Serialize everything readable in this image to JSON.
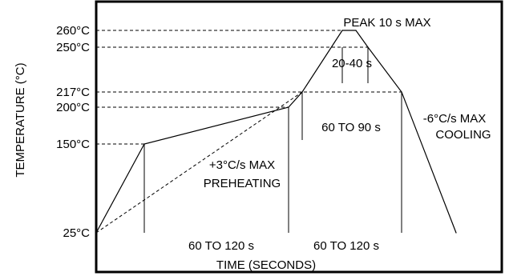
{
  "chart_data": {
    "type": "line",
    "title": "",
    "xlabel": "TIME (SECONDS)",
    "ylabel": "TEMPERATURE (°C)",
    "y_ticks": [
      {
        "value": 25,
        "label": "25°C"
      },
      {
        "value": 150,
        "label": "150°C"
      },
      {
        "value": 200,
        "label": "200°C"
      },
      {
        "value": 217,
        "label": "217°C"
      },
      {
        "value": 250,
        "label": "250°C"
      },
      {
        "value": 260,
        "label": "260°C"
      }
    ],
    "ylim": [
      25,
      260
    ],
    "xlim": [
      0,
      450
    ],
    "series": [
      {
        "style": "solid",
        "x": [
          0,
          60,
          240,
          257,
          307,
          324,
          339,
          381,
          449
        ],
        "y": [
          25,
          150,
          200,
          217,
          260,
          260,
          250,
          217,
          25
        ]
      },
      {
        "style": "dashed",
        "x": [
          0,
          257
        ],
        "y": [
          25,
          217
        ]
      }
    ],
    "x_intervals": [
      {
        "label": "60 TO 120 s",
        "from": 60,
        "to": 240
      },
      {
        "label": "60 TO 120 s",
        "from": 240,
        "to": 381
      }
    ],
    "annotations": {
      "peak": "PEAK 10 s MAX",
      "time_20_40": "20-40 s",
      "time_60_90": "60 TO 90 s",
      "preheat_line1": "+3°C/s MAX",
      "preheat_line2": "PREHEATING",
      "cool_line1": "-6°C/s MAX",
      "cool_line2": "COOLING"
    }
  }
}
